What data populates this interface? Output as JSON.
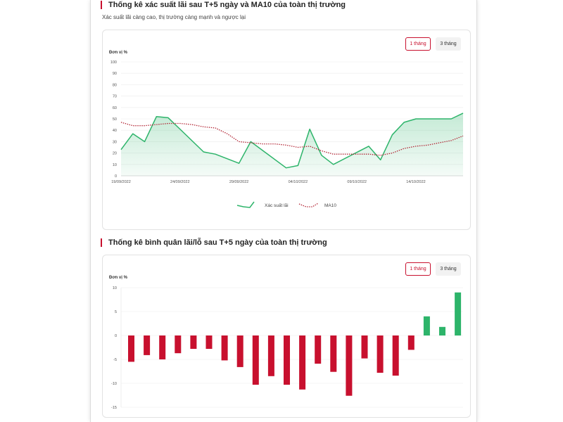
{
  "section1": {
    "title": "Thống kê xác suất lãi sau T+5 ngày và MA10 của toàn thị trường",
    "subtitle": "Xác suất lãi càng cao, thị trường càng mạnh và ngược lại",
    "btn_1m": "1 tháng",
    "btn_3m": "3 tháng",
    "unit": "Đơn vị %"
  },
  "section2": {
    "title": "Thống kê bình quân lãi/lỗ sau T+5 ngày của toàn thị trường",
    "btn_1m": "1 tháng",
    "btn_3m": "3 tháng",
    "unit": "Đơn vị %"
  },
  "colors": {
    "green": "#2db46a",
    "red": "#c8102e",
    "ma": "#b01e2e"
  },
  "chart_data": [
    {
      "type": "line",
      "ylim": [
        0,
        100
      ],
      "yticks": [
        0,
        10,
        20,
        30,
        40,
        50,
        60,
        70,
        80,
        90,
        100
      ],
      "xlim": [
        0,
        29
      ],
      "xticks": [
        {
          "x": 0,
          "label": "19/09/2022"
        },
        {
          "x": 5,
          "label": "24/09/2022"
        },
        {
          "x": 10,
          "label": "29/09/2022"
        },
        {
          "x": 15,
          "label": "04/10/2022"
        },
        {
          "x": 20,
          "label": "09/10/2022"
        },
        {
          "x": 25,
          "label": "14/10/2022"
        }
      ],
      "legend_position": "bottom",
      "series": [
        {
          "name": "Xác suất lãi",
          "style": "area",
          "x": [
            0,
            1,
            2,
            3,
            4,
            7,
            8,
            10,
            11,
            14,
            15,
            16,
            17,
            18,
            21,
            22,
            23,
            24,
            25,
            28,
            29
          ],
          "y": [
            23,
            37,
            30,
            52,
            51,
            21,
            19,
            11,
            30,
            7,
            9,
            41,
            18,
            10,
            26,
            14,
            36,
            47,
            50,
            50,
            55
          ]
        },
        {
          "name": "MA10",
          "style": "dotted",
          "x": [
            0,
            1,
            2,
            3,
            4,
            5,
            6,
            7,
            8,
            9,
            10,
            11,
            12,
            13,
            14,
            15,
            16,
            17,
            18,
            19,
            20,
            21,
            22,
            23,
            24,
            25,
            26,
            27,
            28,
            29
          ],
          "y": [
            47,
            44,
            44,
            45,
            46,
            46,
            45,
            43,
            42,
            37,
            30,
            29,
            28,
            28,
            27,
            25,
            26,
            22,
            19,
            19,
            19,
            19,
            18,
            20,
            24,
            26,
            27,
            29,
            31,
            35
          ]
        }
      ]
    },
    {
      "type": "bar",
      "ylim": [
        -15,
        10
      ],
      "yticks": [
        -15,
        -10,
        -5,
        0,
        5,
        10
      ],
      "values": [
        -5.5,
        -4.1,
        -5,
        -3.7,
        -2.8,
        -2.8,
        -5.2,
        -6.6,
        -10.3,
        -8.5,
        -10.3,
        -11.3,
        -5.9,
        -7.6,
        -12.6,
        -4.8,
        -7.8,
        -8.4,
        -3,
        4,
        1.8,
        9
      ]
    }
  ]
}
